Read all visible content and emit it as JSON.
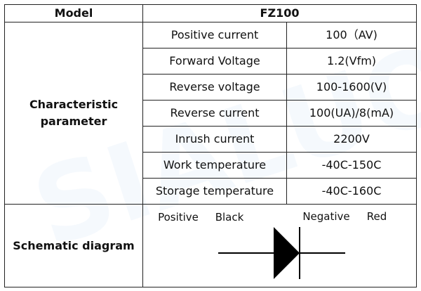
{
  "watermark": "SIALUO",
  "table": {
    "header": [
      "Model",
      "FZ100"
    ],
    "section_label": "Characteristic parameter",
    "rows": [
      [
        "Positive current",
        "100（AV)"
      ],
      [
        "Forward Voltage",
        "1.2(Vfm)"
      ],
      [
        "Reverse voltage",
        "100-1600(V)"
      ],
      [
        "Reverse current",
        "100(UA)/8(mA)"
      ],
      [
        "Inrush current",
        "2200V"
      ],
      [
        "Work temperature",
        "-40C-150C"
      ],
      [
        "Storage temperature",
        "-40C-160C"
      ]
    ],
    "schematic": {
      "label": "Schematic diagram",
      "labels": [
        "Positive",
        "Black",
        "Negative",
        "Red"
      ]
    }
  }
}
